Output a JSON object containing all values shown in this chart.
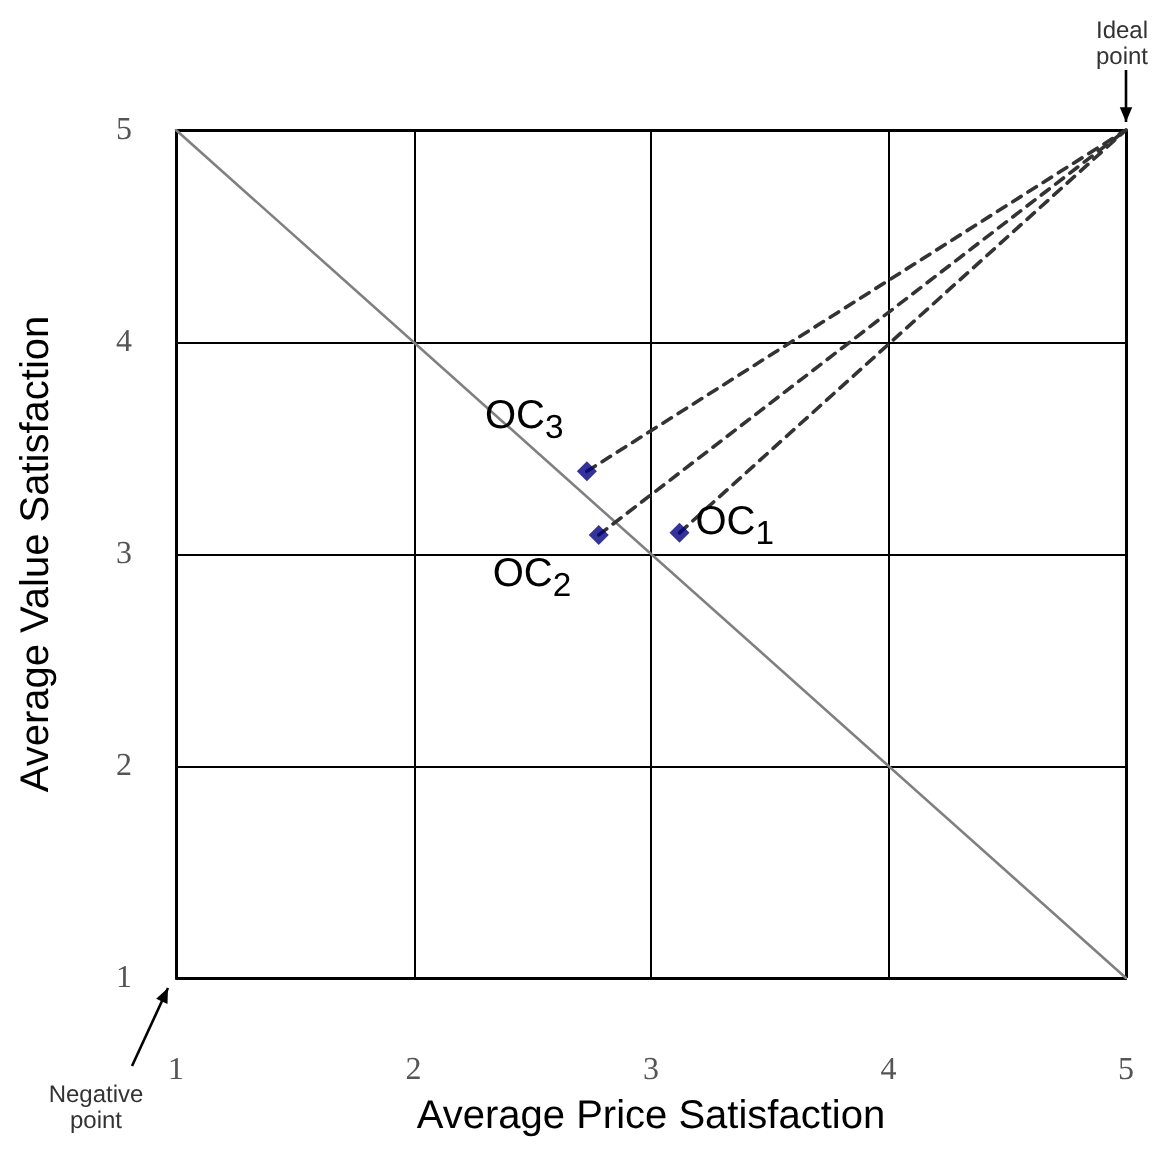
{
  "chart_data": {
    "type": "scatter",
    "xlabel": "Average Price Satisfaction",
    "ylabel": "Average Value Satisfaction",
    "xlim": [
      1,
      5
    ],
    "ylim": [
      1,
      5
    ],
    "xticks": [
      1,
      2,
      3,
      4,
      5
    ],
    "yticks": [
      1,
      2,
      3,
      4,
      5
    ],
    "grid": true,
    "marker": "diamond",
    "series": [
      {
        "x": [
          3.12,
          2.78,
          2.73
        ],
        "values": [
          3.1,
          3.09,
          3.39
        ],
        "color": "#000080"
      },
      {
        "type": "line",
        "x": [
          1,
          5
        ],
        "values": [
          5,
          1
        ],
        "color": "#808080",
        "line_style": "solid",
        "marker": "none"
      },
      {
        "type": "line",
        "x": [
          3.12,
          5
        ],
        "values": [
          3.1,
          5
        ],
        "color": "#333333",
        "line_style": "dashed",
        "marker": "none"
      },
      {
        "type": "line",
        "x": [
          2.78,
          5
        ],
        "values": [
          3.09,
          5
        ],
        "color": "#333333",
        "line_style": "dashed",
        "marker": "none"
      },
      {
        "type": "line",
        "x": [
          2.73,
          5
        ],
        "values": [
          3.39,
          5
        ],
        "color": "#333333",
        "line_style": "dashed",
        "marker": "none"
      }
    ],
    "annotations": [
      {
        "text": "OC$_{1}$",
        "x": 3.12,
        "y": 3.1
      },
      {
        "text": "OC$_{2}$",
        "x": 2.78,
        "y": 3.09
      },
      {
        "text": "OC$_{3}$",
        "x": 2.73,
        "y": 3.39
      },
      "Ideal point",
      "Negative point"
    ]
  }
}
